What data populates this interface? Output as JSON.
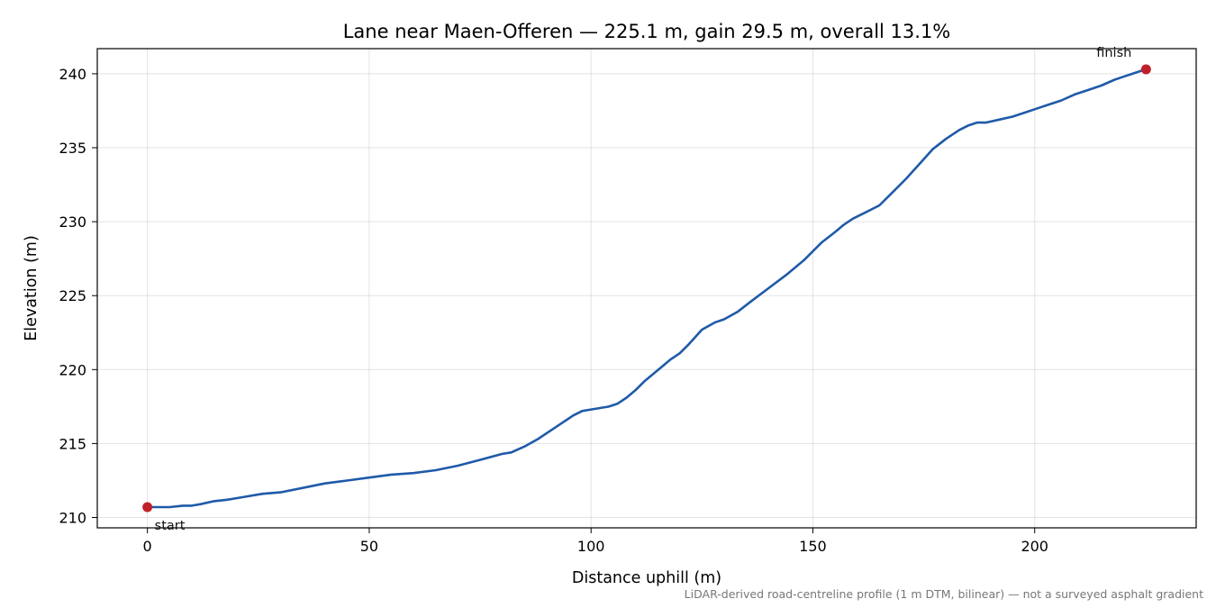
{
  "chart_data": {
    "type": "line",
    "title": "Lane near Maen-Offeren — 225.1 m, gain 29.5 m, overall 13.1%",
    "xlabel": "Distance uphill (m)",
    "ylabel": "Elevation (m)",
    "xlim": [
      -11.3,
      236.4
    ],
    "ylim": [
      209.3,
      241.7
    ],
    "xticks": [
      0,
      50,
      100,
      150,
      200
    ],
    "yticks": [
      210,
      215,
      220,
      225,
      230,
      235,
      240
    ],
    "grid": true,
    "line_color": "#1f5aa8",
    "marker_color": "#c0202a",
    "series": [
      {
        "x": [
          0,
          2,
          5,
          8,
          10,
          12,
          15,
          18,
          22,
          26,
          30,
          35,
          40,
          45,
          50,
          55,
          60,
          65,
          70,
          75,
          80,
          82,
          85,
          88,
          90,
          93,
          96,
          98,
          100,
          102,
          104,
          106,
          108,
          110,
          112,
          114,
          116,
          118,
          120,
          122,
          125,
          128,
          130,
          133,
          136,
          140,
          144,
          148,
          152,
          155,
          157,
          159,
          161,
          163,
          165,
          168,
          171,
          174,
          177,
          180,
          183,
          185,
          187,
          189,
          192,
          195,
          198,
          200,
          203,
          206,
          209,
          212,
          215,
          218,
          220,
          222,
          224,
          225.1
        ],
        "y": [
          210.7,
          210.7,
          210.7,
          210.8,
          210.8,
          210.9,
          211.1,
          211.2,
          211.4,
          211.6,
          211.7,
          212.0,
          212.3,
          212.5,
          212.7,
          212.9,
          213.0,
          213.2,
          213.5,
          213.9,
          214.3,
          214.4,
          214.8,
          215.3,
          215.7,
          216.3,
          216.9,
          217.2,
          217.3,
          217.4,
          217.5,
          217.7,
          218.1,
          218.6,
          219.2,
          219.7,
          220.2,
          220.7,
          221.1,
          221.7,
          222.7,
          223.2,
          223.4,
          223.9,
          224.6,
          225.5,
          226.4,
          227.4,
          228.6,
          229.3,
          229.8,
          230.2,
          230.5,
          230.8,
          231.1,
          232.0,
          232.9,
          233.9,
          234.9,
          235.6,
          236.2,
          236.5,
          236.7,
          236.7,
          236.9,
          237.1,
          237.4,
          237.6,
          237.9,
          238.2,
          238.6,
          238.9,
          239.2,
          239.6,
          239.8,
          240.0,
          240.2,
          240.3
        ]
      }
    ],
    "annotations": [
      {
        "label": "start",
        "x": 0,
        "y": 210.7
      },
      {
        "label": "finish",
        "x": 225.1,
        "y": 240.3
      }
    ],
    "footnote": "LiDAR-derived road-centreline profile (1 m DTM, bilinear) — not a surveyed asphalt gradient"
  }
}
